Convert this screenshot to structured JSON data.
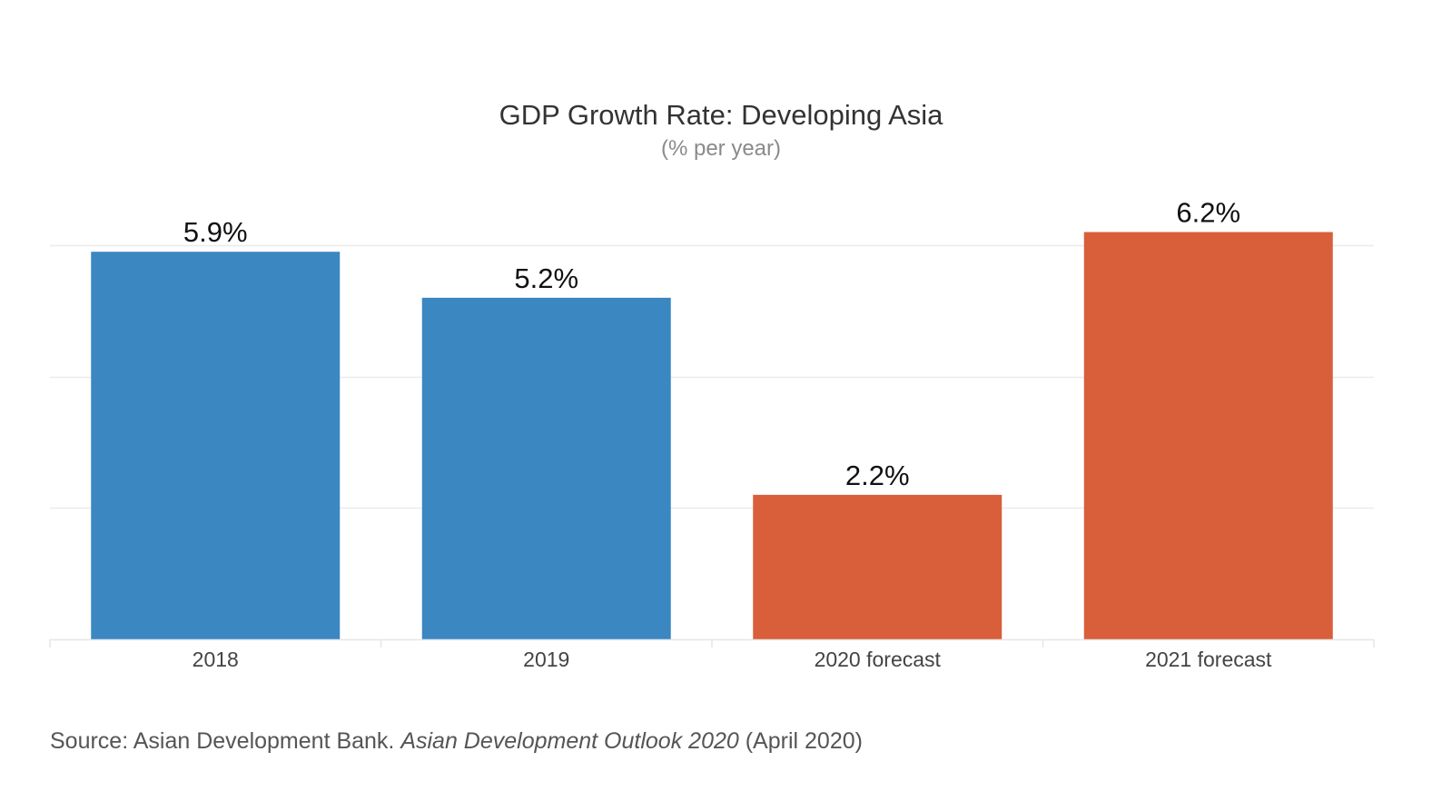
{
  "chart_data": {
    "type": "bar",
    "title": "GDP Growth Rate: Developing Asia",
    "subtitle": "(% per year)",
    "categories": [
      "2018",
      "2019",
      "2020 forecast",
      "2021 forecast"
    ],
    "values": [
      5.9,
      5.2,
      2.2,
      6.2
    ],
    "data_labels": [
      "5.9%",
      "5.2%",
      "2.2%",
      "6.2%"
    ],
    "colors": [
      "#3a87c2",
      "#3a87c2",
      "#d85f39",
      "#d85f39"
    ],
    "xlabel": "",
    "ylabel": "",
    "ylim": [
      0,
      6
    ],
    "grid": true,
    "legend": "none"
  },
  "source": {
    "prefix": "Source: Asian Development Bank. ",
    "publication": "Asian Development Outlook 2020",
    "suffix": " (April 2020)"
  }
}
